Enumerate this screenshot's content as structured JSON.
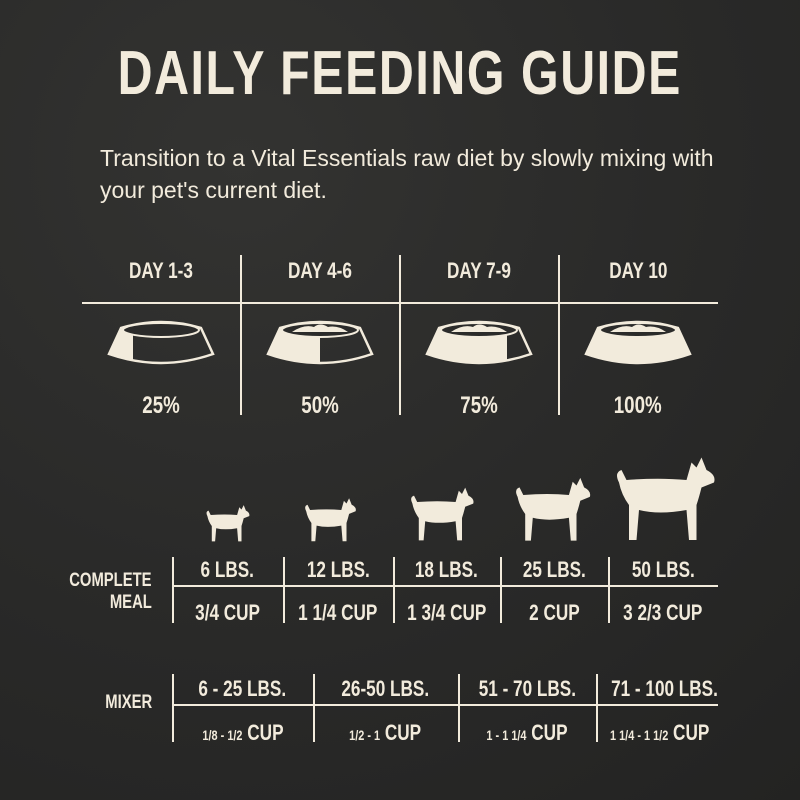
{
  "title": "DAILY FEEDING GUIDE",
  "subtitle": "Transition to a Vital Essentials raw diet by slowly mixing with your pet's current diet.",
  "colors": {
    "background": "#2b2b2a",
    "text": "#f2ebdc"
  },
  "transition": [
    {
      "day": "DAY 1-3",
      "percent_label": "25%",
      "fill": 0.25
    },
    {
      "day": "DAY 4-6",
      "percent_label": "50%",
      "fill": 0.5
    },
    {
      "day": "DAY 7-9",
      "percent_label": "75%",
      "fill": 0.75
    },
    {
      "day": "DAY 10",
      "percent_label": "100%",
      "fill": 1.0
    }
  ],
  "dog_icons": [
    "chihuahua-icon",
    "poodle-icon",
    "pug-icon",
    "shiba-icon",
    "retriever-icon"
  ],
  "complete_meal": {
    "label_line1": "COMPLETE",
    "label_line2": "MEAL",
    "weights": [
      "6 LBS.",
      "12 LBS.",
      "18 LBS.",
      "25 LBS.",
      "50 LBS."
    ],
    "amounts": [
      "3/4 CUP",
      "1 1/4 CUP",
      "1 3/4 CUP",
      "2 CUP",
      "3 2/3 CUP"
    ]
  },
  "mixer": {
    "label": "MIXER",
    "weights": [
      "6 - 25 LBS.",
      "26-50 LBS.",
      "51 - 70 LBS.",
      "71 - 100 LBS."
    ],
    "amounts": [
      {
        "range": "1/8 - 1/2",
        "unit": "CUP"
      },
      {
        "range": "1/2 - 1",
        "unit": "CUP"
      },
      {
        "range": "1 - 1 1/4",
        "unit": "CUP"
      },
      {
        "range": "1 1/4 - 1 1/2",
        "unit": "CUP"
      }
    ]
  }
}
